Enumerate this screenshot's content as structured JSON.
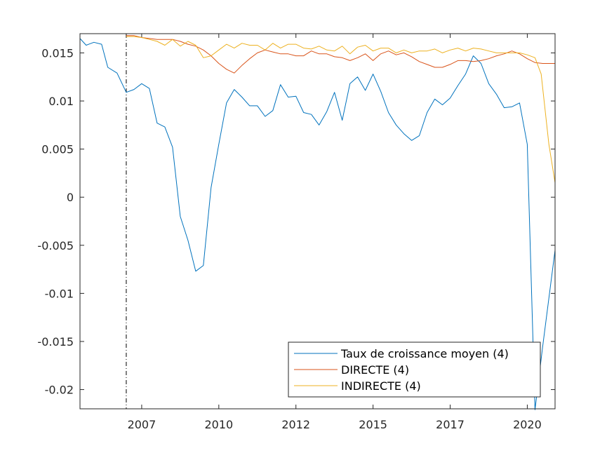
{
  "chart_data": {
    "type": "line",
    "title": "",
    "xlabel": "",
    "ylabel": "",
    "xlim": [
      2005.0,
      2020.4
    ],
    "ylim": [
      -0.022,
      0.017
    ],
    "grid": false,
    "legend_position": "bottom-right",
    "x_ticks": [
      {
        "value": 2007.0,
        "label": "2007"
      },
      {
        "value": 2009.5,
        "label": "2010"
      },
      {
        "value": 2012.0,
        "label": "2012"
      },
      {
        "value": 2014.5,
        "label": "2015"
      },
      {
        "value": 2017.0,
        "label": "2017"
      },
      {
        "value": 2019.5,
        "label": "2020"
      }
    ],
    "y_ticks": [
      {
        "value": 0.015,
        "label": "0.015"
      },
      {
        "value": 0.01,
        "label": "0.01"
      },
      {
        "value": 0.005,
        "label": "0.005"
      },
      {
        "value": 0,
        "label": "0"
      },
      {
        "value": -0.005,
        "label": "-0.005"
      },
      {
        "value": -0.01,
        "label": "-0.01"
      },
      {
        "value": -0.015,
        "label": "-0.015"
      },
      {
        "value": -0.02,
        "label": "-0.02"
      }
    ],
    "vertical_marker": {
      "x": 2006.5,
      "style": "dash-dot"
    },
    "series": [
      {
        "name": "Taux de croissance moyen (4)",
        "color": "#0072BD",
        "points": [
          [
            2005.0,
            0.0165
          ],
          [
            2005.2,
            0.0158
          ],
          [
            2005.45,
            0.0161
          ],
          [
            2005.7,
            0.0159
          ],
          [
            2005.9,
            0.0135
          ],
          [
            2006.2,
            0.0129
          ],
          [
            2006.5,
            0.0109
          ],
          [
            2006.75,
            0.0112
          ],
          [
            2007.0,
            0.0118
          ],
          [
            2007.25,
            0.0113
          ],
          [
            2007.5,
            0.0077
          ],
          [
            2007.75,
            0.0073
          ],
          [
            2008.0,
            0.0052
          ],
          [
            2008.25,
            -0.002
          ],
          [
            2008.5,
            -0.0045
          ],
          [
            2008.75,
            -0.0077
          ],
          [
            2009.0,
            -0.0071
          ],
          [
            2009.25,
            0.001
          ],
          [
            2009.5,
            0.0055
          ],
          [
            2009.75,
            0.0098
          ],
          [
            2010.0,
            0.0112
          ],
          [
            2010.25,
            0.0104
          ],
          [
            2010.5,
            0.0095
          ],
          [
            2010.75,
            0.0095
          ],
          [
            2011.0,
            0.0084
          ],
          [
            2011.25,
            0.009
          ],
          [
            2011.5,
            0.0117
          ],
          [
            2011.75,
            0.0104
          ],
          [
            2012.0,
            0.0105
          ],
          [
            2012.25,
            0.0088
          ],
          [
            2012.5,
            0.0086
          ],
          [
            2012.75,
            0.0075
          ],
          [
            2013.0,
            0.0089
          ],
          [
            2013.25,
            0.0109
          ],
          [
            2013.5,
            0.008
          ],
          [
            2013.75,
            0.0118
          ],
          [
            2014.0,
            0.0125
          ],
          [
            2014.25,
            0.0111
          ],
          [
            2014.5,
            0.0128
          ],
          [
            2014.75,
            0.011
          ],
          [
            2015.0,
            0.0088
          ],
          [
            2015.25,
            0.0075
          ],
          [
            2015.5,
            0.0066
          ],
          [
            2015.75,
            0.0059
          ],
          [
            2016.0,
            0.0064
          ],
          [
            2016.25,
            0.0088
          ],
          [
            2016.5,
            0.0102
          ],
          [
            2016.75,
            0.0096
          ],
          [
            2017.0,
            0.0103
          ],
          [
            2017.25,
            0.0116
          ],
          [
            2017.5,
            0.0128
          ],
          [
            2017.75,
            0.0147
          ],
          [
            2018.0,
            0.0139
          ],
          [
            2018.25,
            0.0118
          ],
          [
            2018.5,
            0.0107
          ],
          [
            2018.75,
            0.0093
          ],
          [
            2019.0,
            0.0094
          ],
          [
            2019.25,
            0.0098
          ],
          [
            2019.5,
            0.0055
          ],
          [
            2019.75,
            -0.0221
          ],
          [
            2020.0,
            -0.0155
          ],
          [
            2020.4,
            -0.0055
          ]
        ]
      },
      {
        "name": "DIRECTE (4)",
        "color": "#D95319",
        "points": [
          [
            2006.5,
            0.0168
          ],
          [
            2006.75,
            0.0168
          ],
          [
            2007.0,
            0.0166
          ],
          [
            2007.25,
            0.0165
          ],
          [
            2007.5,
            0.0164
          ],
          [
            2007.75,
            0.0164
          ],
          [
            2008.0,
            0.0164
          ],
          [
            2008.25,
            0.0162
          ],
          [
            2008.5,
            0.0159
          ],
          [
            2008.75,
            0.0157
          ],
          [
            2009.0,
            0.0153
          ],
          [
            2009.25,
            0.0147
          ],
          [
            2009.5,
            0.0139
          ],
          [
            2009.75,
            0.0133
          ],
          [
            2010.0,
            0.0129
          ],
          [
            2010.25,
            0.0137
          ],
          [
            2010.5,
            0.0144
          ],
          [
            2010.75,
            0.015
          ],
          [
            2011.0,
            0.0153
          ],
          [
            2011.25,
            0.0151
          ],
          [
            2011.5,
            0.0149
          ],
          [
            2011.75,
            0.0149
          ],
          [
            2012.0,
            0.0147
          ],
          [
            2012.25,
            0.0147
          ],
          [
            2012.5,
            0.0152
          ],
          [
            2012.75,
            0.0149
          ],
          [
            2013.0,
            0.0149
          ],
          [
            2013.25,
            0.0146
          ],
          [
            2013.5,
            0.0145
          ],
          [
            2013.75,
            0.0142
          ],
          [
            2014.0,
            0.0145
          ],
          [
            2014.25,
            0.0149
          ],
          [
            2014.5,
            0.0142
          ],
          [
            2014.75,
            0.0149
          ],
          [
            2015.0,
            0.0152
          ],
          [
            2015.25,
            0.0148
          ],
          [
            2015.5,
            0.015
          ],
          [
            2015.75,
            0.0146
          ],
          [
            2016.0,
            0.0141
          ],
          [
            2016.25,
            0.0138
          ],
          [
            2016.5,
            0.0135
          ],
          [
            2016.75,
            0.0135
          ],
          [
            2017.0,
            0.0138
          ],
          [
            2017.25,
            0.0142
          ],
          [
            2017.5,
            0.0142
          ],
          [
            2017.75,
            0.0141
          ],
          [
            2018.0,
            0.0142
          ],
          [
            2018.25,
            0.0144
          ],
          [
            2018.5,
            0.0147
          ],
          [
            2018.75,
            0.0149
          ],
          [
            2019.0,
            0.0152
          ],
          [
            2019.25,
            0.0149
          ],
          [
            2019.5,
            0.0144
          ],
          [
            2019.75,
            0.014
          ],
          [
            2020.0,
            0.0139
          ],
          [
            2020.4,
            0.0139
          ]
        ]
      },
      {
        "name": "INDIRECTE (4)",
        "color": "#EDB120",
        "points": [
          [
            2006.5,
            0.0167
          ],
          [
            2006.75,
            0.0167
          ],
          [
            2007.0,
            0.0166
          ],
          [
            2007.25,
            0.0164
          ],
          [
            2007.5,
            0.0162
          ],
          [
            2007.75,
            0.0158
          ],
          [
            2008.0,
            0.0164
          ],
          [
            2008.25,
            0.0157
          ],
          [
            2008.5,
            0.0162
          ],
          [
            2008.75,
            0.0158
          ],
          [
            2009.0,
            0.0145
          ],
          [
            2009.25,
            0.0147
          ],
          [
            2009.5,
            0.0153
          ],
          [
            2009.75,
            0.0159
          ],
          [
            2010.0,
            0.0155
          ],
          [
            2010.25,
            0.016
          ],
          [
            2010.5,
            0.0158
          ],
          [
            2010.75,
            0.0158
          ],
          [
            2011.0,
            0.0153
          ],
          [
            2011.25,
            0.016
          ],
          [
            2011.5,
            0.0155
          ],
          [
            2011.75,
            0.0159
          ],
          [
            2012.0,
            0.0159
          ],
          [
            2012.25,
            0.0155
          ],
          [
            2012.5,
            0.0154
          ],
          [
            2012.75,
            0.0157
          ],
          [
            2013.0,
            0.0153
          ],
          [
            2013.25,
            0.0152
          ],
          [
            2013.5,
            0.0157
          ],
          [
            2013.75,
            0.0149
          ],
          [
            2014.0,
            0.0156
          ],
          [
            2014.25,
            0.0158
          ],
          [
            2014.5,
            0.0152
          ],
          [
            2014.75,
            0.0155
          ],
          [
            2015.0,
            0.0155
          ],
          [
            2015.25,
            0.015
          ],
          [
            2015.5,
            0.0153
          ],
          [
            2015.75,
            0.015
          ],
          [
            2016.0,
            0.0152
          ],
          [
            2016.25,
            0.0152
          ],
          [
            2016.5,
            0.0154
          ],
          [
            2016.75,
            0.015
          ],
          [
            2017.0,
            0.0153
          ],
          [
            2017.25,
            0.0155
          ],
          [
            2017.5,
            0.0152
          ],
          [
            2017.75,
            0.0155
          ],
          [
            2018.0,
            0.0154
          ],
          [
            2018.25,
            0.0152
          ],
          [
            2018.5,
            0.015
          ],
          [
            2018.75,
            0.015
          ],
          [
            2019.0,
            0.015
          ],
          [
            2019.25,
            0.015
          ],
          [
            2019.5,
            0.0148
          ],
          [
            2019.75,
            0.0145
          ],
          [
            2019.95,
            0.0128
          ],
          [
            2020.2,
            0.0055
          ],
          [
            2020.4,
            0.0015
          ]
        ]
      }
    ]
  }
}
